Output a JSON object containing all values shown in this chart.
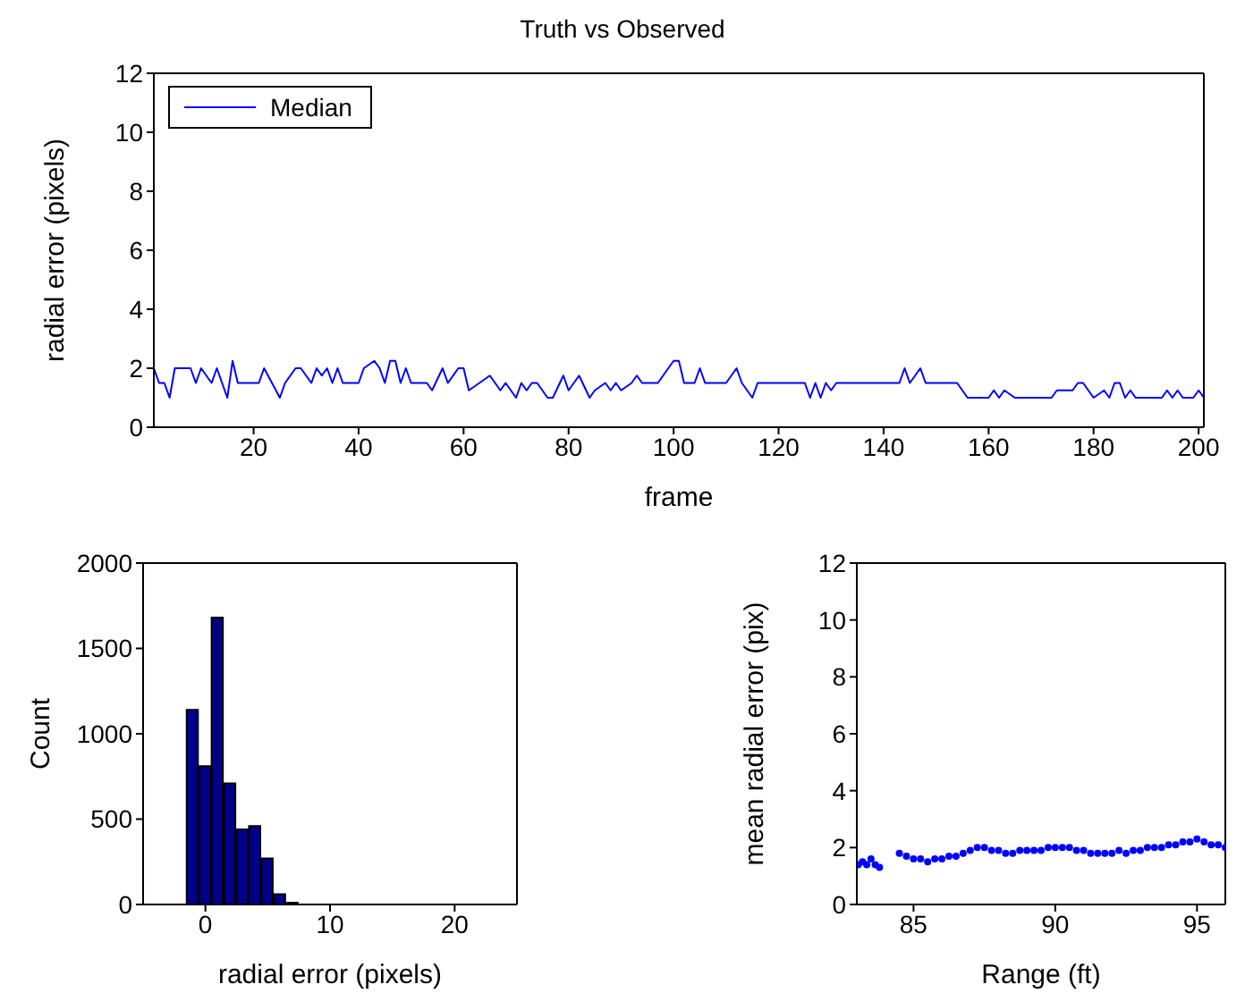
{
  "chart_data": [
    {
      "type": "line",
      "title": "Truth vs Observed",
      "xlabel": "frame",
      "ylabel": "radial error (pixels)",
      "legend": "top left",
      "xlim": [
        1,
        201
      ],
      "xticks": [
        20,
        40,
        60,
        80,
        100,
        120,
        140,
        160,
        180,
        200
      ],
      "ylim": [
        0,
        12
      ],
      "yticks": [
        0,
        2,
        4,
        6,
        8,
        10,
        12
      ],
      "x": [
        1,
        2,
        3,
        4,
        5,
        8,
        9,
        10,
        12,
        13,
        15,
        16,
        17,
        21,
        22,
        25,
        26,
        28,
        29,
        31,
        32,
        33,
        34,
        35,
        36,
        37,
        40,
        41,
        43,
        44,
        45,
        46,
        47,
        48,
        49,
        50,
        53,
        54,
        56,
        57,
        59,
        60,
        61,
        63,
        65,
        66,
        67,
        68,
        70,
        71,
        72,
        73,
        74,
        76,
        77,
        79,
        80,
        82,
        84,
        85,
        87,
        88,
        89,
        90,
        92,
        93,
        94,
        97,
        98,
        100,
        101,
        102,
        104,
        105,
        106,
        110,
        112,
        113,
        115,
        116,
        125,
        126,
        127,
        128,
        129,
        130,
        131,
        143,
        144,
        145,
        147,
        148,
        154,
        156,
        160,
        161,
        162,
        163,
        165,
        172,
        173,
        176,
        177,
        178,
        179,
        180,
        182,
        183,
        184,
        185,
        186,
        187,
        188,
        193,
        194,
        195,
        196,
        197,
        199,
        200,
        201
      ],
      "series": [
        {
          "name": "Median",
          "color": "#0000ff",
          "values": [
            2,
            1.5,
            1.5,
            1,
            2,
            2,
            1.5,
            2,
            1.5,
            2,
            1,
            2.25,
            1.5,
            1.5,
            2,
            1,
            1.5,
            2,
            2,
            1.5,
            2,
            1.75,
            2,
            1.5,
            2,
            1.5,
            1.5,
            2,
            2.25,
            2,
            1.5,
            2.25,
            2.25,
            1.5,
            2,
            1.5,
            1.5,
            1.25,
            2,
            1.5,
            2,
            2,
            1.25,
            1.5,
            1.75,
            1.5,
            1.25,
            1.5,
            1,
            1.5,
            1.25,
            1.5,
            1.5,
            1,
            1,
            1.75,
            1.25,
            1.75,
            1,
            1.25,
            1.5,
            1.25,
            1.5,
            1.25,
            1.5,
            1.75,
            1.5,
            1.5,
            1.75,
            2.25,
            2.25,
            1.5,
            1.5,
            2,
            1.5,
            1.5,
            2,
            1.5,
            1,
            1.5,
            1.5,
            1,
            1.5,
            1,
            1.5,
            1.25,
            1.5,
            1.5,
            2,
            1.5,
            2,
            1.5,
            1.5,
            1,
            1,
            1.25,
            1,
            1.25,
            1,
            1,
            1.25,
            1.25,
            1.5,
            1.5,
            1.25,
            1,
            1.25,
            1,
            1.5,
            1.5,
            1,
            1.25,
            1,
            1,
            1.25,
            1,
            1.25,
            1,
            1,
            1.25,
            1
          ]
        }
      ]
    },
    {
      "type": "histogram",
      "xlabel": "radial error (pixels)",
      "ylabel": "Count",
      "color": "#00008b",
      "xlim": [
        -5,
        25
      ],
      "xticks": [
        0,
        10,
        20
      ],
      "ylim": [
        0,
        2000
      ],
      "yticks": [
        0,
        500,
        1000,
        1500,
        2000
      ],
      "bins": [
        -1.5,
        -0.5,
        0.5,
        1.5,
        2.5,
        3.5,
        4.5,
        5.5,
        6.5,
        7.5,
        8.5,
        9.5,
        10.5,
        11.5,
        12.5,
        13.5,
        14.5,
        15.5,
        16.5,
        17.5,
        18.5,
        19.5,
        20.5,
        21.5,
        22.5,
        23.5,
        24.5
      ],
      "values": [
        1140,
        810,
        1680,
        710,
        440,
        460,
        270,
        60,
        10,
        0,
        0,
        0,
        0,
        0,
        0,
        0,
        0,
        0,
        0,
        0,
        0,
        0,
        0,
        0,
        0,
        0
      ]
    },
    {
      "type": "scatter",
      "xlabel": "Range (ft)",
      "ylabel": "mean radial error (pix)",
      "marker": "circle",
      "xlim": [
        83,
        96
      ],
      "xticks": [
        85,
        90,
        95
      ],
      "ylim": [
        0,
        12
      ],
      "yticks": [
        0,
        2,
        4,
        6,
        8,
        10,
        12
      ],
      "x": [
        83.05,
        83.2,
        83.35,
        83.5,
        83.65,
        83.8,
        84.5,
        84.75,
        85,
        85.25,
        85.5,
        85.75,
        86,
        86.25,
        86.5,
        86.75,
        87,
        87.25,
        87.5,
        87.75,
        88,
        88.25,
        88.5,
        88.75,
        89,
        89.25,
        89.5,
        89.75,
        90,
        90.25,
        90.5,
        90.75,
        91,
        91.25,
        91.5,
        91.75,
        92,
        92.25,
        92.5,
        92.75,
        93,
        93.25,
        93.5,
        93.75,
        94,
        94.25,
        94.5,
        94.75,
        95,
        95.25,
        95.5,
        95.75,
        96
      ],
      "series": [
        {
          "color": "#0000ff",
          "values": [
            1.4,
            1.5,
            1.4,
            1.6,
            1.4,
            1.3,
            1.8,
            1.7,
            1.6,
            1.6,
            1.5,
            1.6,
            1.6,
            1.7,
            1.7,
            1.8,
            1.9,
            2,
            2,
            1.9,
            1.9,
            1.8,
            1.8,
            1.9,
            1.9,
            1.9,
            1.9,
            2,
            2,
            2,
            2,
            1.9,
            1.9,
            1.8,
            1.8,
            1.8,
            1.8,
            1.9,
            1.8,
            1.9,
            1.9,
            2,
            2,
            2,
            2.1,
            2.1,
            2.2,
            2.2,
            2.3,
            2.2,
            2.1,
            2.1,
            2
          ]
        }
      ]
    }
  ]
}
